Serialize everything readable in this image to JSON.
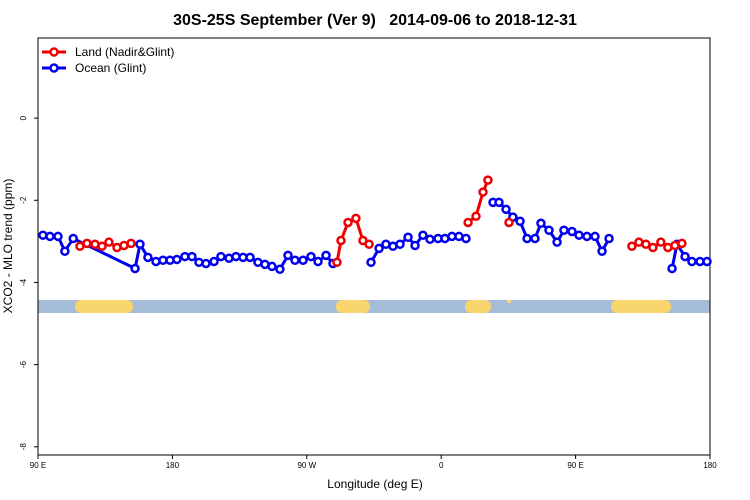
{
  "chart_data": {
    "type": "line",
    "title": "30S-25S September (Ver 9)   2014-09-06 to 2018-12-31",
    "xlabel": "Longitude (deg E)",
    "ylabel": "XCO2 - MLO trend (ppm)",
    "xlim": [
      90,
      540
    ],
    "ylim": [
      -8.2,
      1.95
    ],
    "xticks": [
      {
        "value": 90,
        "label": "90 E"
      },
      {
        "value": 180,
        "label": "180"
      },
      {
        "value": 270,
        "label": "90 W"
      },
      {
        "value": 360,
        "label": "0"
      },
      {
        "value": 450,
        "label": "90 E"
      },
      {
        "value": 540,
        "label": "180"
      }
    ],
    "yticks": [
      0,
      -2,
      -4,
      -6,
      -8
    ],
    "legend": "top-left",
    "series": [
      {
        "name": "Land (Nadir&Glint)",
        "color": "#ee0000",
        "x": [
          118.1,
          122.8,
          128.2,
          132.9,
          137.5,
          142.9,
          147.6,
          152.3,
          null,
          290.2,
          292.9,
          297.6,
          302.9,
          307.6,
          311.7,
          null,
          378,
          383.3,
          388,
          391.3,
          null,
          405.4,
          null,
          487.7,
          492.4,
          497.1,
          501.8,
          507.1,
          511.8,
          516.5,
          521.2
        ],
        "values": [
          -3.12,
          -3.05,
          -3.07,
          -3.12,
          -3.02,
          -3.15,
          -3.1,
          -3.05,
          null,
          -3.51,
          -2.98,
          -2.54,
          -2.44,
          -2.98,
          -3.07,
          null,
          -2.54,
          -2.39,
          -1.8,
          -1.51,
          null,
          -2.54,
          null,
          -3.12,
          -3.02,
          -3.07,
          -3.15,
          -3.02,
          -3.15,
          -3.1,
          -3.05
        ]
      },
      {
        "name": "Ocean (Glint)",
        "color": "#0000ee",
        "x": [
          93.3,
          98,
          103.4,
          108,
          113.6,
          155,
          158.3,
          163.6,
          169,
          173.7,
          178.4,
          183,
          188.4,
          193.1,
          197.8,
          202.5,
          207.9,
          212.5,
          217.9,
          222.6,
          227.3,
          232,
          237.3,
          242,
          246.7,
          252,
          257.4,
          262.1,
          267.5,
          272.8,
          277.5,
          282.9,
          287.5,
          null,
          313,
          318.4,
          323,
          327.7,
          332.4,
          337.8,
          342.5,
          347.8,
          352.5,
          357.9,
          362.5,
          367.2,
          371.9,
          376.6,
          null,
          394.7,
          398.7,
          403.4,
          408,
          412.8,
          417.5,
          422.8,
          426.8,
          432.2,
          437.6,
          442.2,
          447.6,
          452.3,
          457.6,
          463,
          467.7,
          472.4,
          null,
          514.6,
          517.9,
          523.3,
          527.9,
          533.3,
          538
        ],
        "values": [
          -2.85,
          -2.88,
          -2.88,
          -3.24,
          -2.93,
          -3.66,
          -3.07,
          -3.39,
          -3.49,
          -3.46,
          -3.46,
          -3.44,
          -3.37,
          -3.37,
          -3.51,
          -3.54,
          -3.49,
          -3.37,
          -3.41,
          -3.37,
          -3.39,
          -3.39,
          -3.51,
          -3.56,
          -3.61,
          -3.68,
          -3.34,
          -3.46,
          -3.46,
          -3.37,
          -3.49,
          -3.34,
          -3.54,
          null,
          -3.51,
          -3.17,
          -3.07,
          -3.12,
          -3.07,
          -2.9,
          -3.1,
          -2.85,
          -2.95,
          -2.93,
          -2.93,
          -2.88,
          -2.88,
          -2.93,
          null,
          -2.05,
          -2.05,
          -2.22,
          -2.41,
          -2.51,
          -2.93,
          -2.93,
          -2.56,
          -2.73,
          -3.02,
          -2.73,
          -2.76,
          -2.85,
          -2.88,
          -2.88,
          -3.24,
          -2.93,
          null,
          -3.66,
          -3.07,
          -3.37,
          -3.49,
          -3.49,
          -3.49
        ]
      }
    ]
  }
}
